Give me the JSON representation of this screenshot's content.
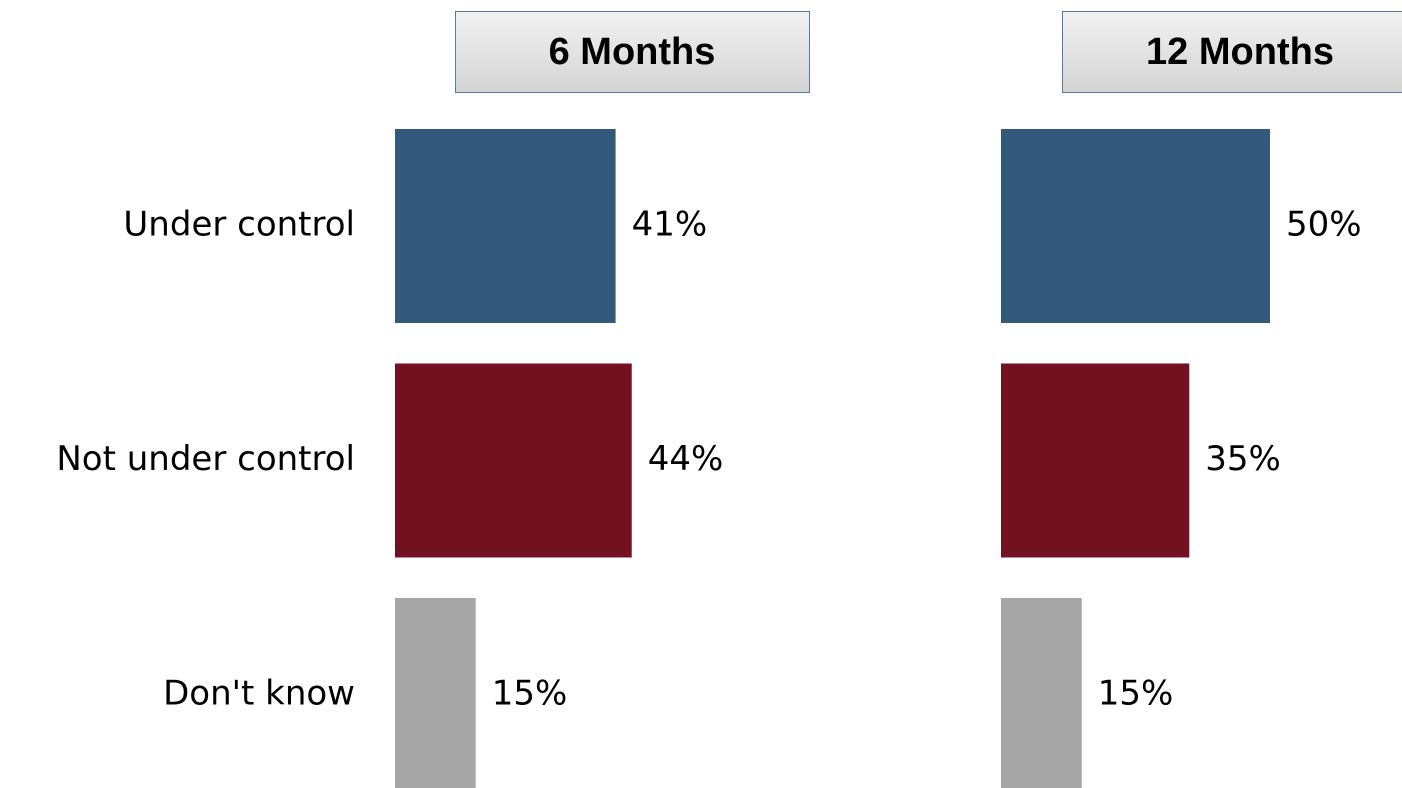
{
  "chart_data": [
    {
      "type": "bar",
      "orientation": "horizontal",
      "title": "6 Months",
      "categories": [
        "Under control",
        "Not under control",
        "Don't know"
      ],
      "values": [
        41,
        44,
        15
      ],
      "value_labels": [
        "41%",
        "44%",
        "15%"
      ],
      "colors": [
        "#335a7a",
        "#731121",
        "#a6a6a6"
      ]
    },
    {
      "type": "bar",
      "orientation": "horizontal",
      "title": "12 Months",
      "values": [
        50,
        35,
        15
      ],
      "value_labels": [
        "50%",
        "35%",
        "15%"
      ],
      "colors": [
        "#335a7a",
        "#731121",
        "#a6a6a6"
      ]
    }
  ]
}
